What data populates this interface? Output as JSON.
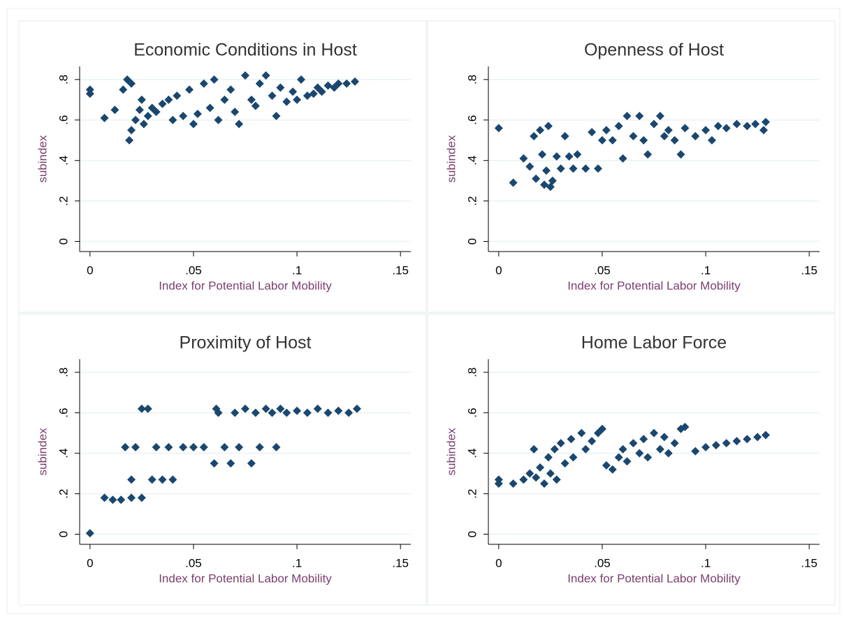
{
  "chart_data": [
    {
      "type": "scatter",
      "title": "Economic Conditions in Host",
      "x_label": "Index for Potential Labor Mobility",
      "y_label": "subindex",
      "color": "#1a476f",
      "grid": true,
      "xlim": [
        -0.005,
        0.155
      ],
      "ylim": [
        -0.05,
        0.865
      ],
      "xticks": [
        {
          "value": 0,
          "label": "0"
        },
        {
          "value": 0.05,
          "label": ".05"
        },
        {
          "value": 0.1,
          "label": ".1"
        },
        {
          "value": 0.15,
          "label": ".15"
        }
      ],
      "yticks": [
        {
          "value": 0,
          "label": "0"
        },
        {
          "value": 0.2,
          "label": ".2"
        },
        {
          "value": 0.4,
          "label": ".4"
        },
        {
          "value": 0.6,
          "label": ".6"
        },
        {
          "value": 0.8,
          "label": ".8"
        }
      ],
      "x": [
        0,
        0,
        0.007,
        0.012,
        0.016,
        0.018,
        0.019,
        0.02,
        0.02,
        0.022,
        0.024,
        0.025,
        0.026,
        0.028,
        0.03,
        0.032,
        0.035,
        0.038,
        0.04,
        0.042,
        0.045,
        0.048,
        0.05,
        0.052,
        0.055,
        0.058,
        0.06,
        0.062,
        0.065,
        0.068,
        0.07,
        0.072,
        0.075,
        0.078,
        0.08,
        0.082,
        0.085,
        0.088,
        0.09,
        0.092,
        0.095,
        0.098,
        0.1,
        0.102,
        0.105,
        0.108,
        0.11,
        0.112,
        0.115,
        0.118,
        0.12,
        0.124,
        0.128
      ],
      "values": [
        0.73,
        0.75,
        0.61,
        0.65,
        0.75,
        0.8,
        0.5,
        0.55,
        0.78,
        0.6,
        0.65,
        0.7,
        0.58,
        0.62,
        0.66,
        0.64,
        0.68,
        0.7,
        0.6,
        0.72,
        0.62,
        0.75,
        0.58,
        0.63,
        0.78,
        0.66,
        0.8,
        0.6,
        0.7,
        0.75,
        0.64,
        0.58,
        0.82,
        0.7,
        0.67,
        0.78,
        0.82,
        0.72,
        0.62,
        0.76,
        0.69,
        0.74,
        0.7,
        0.8,
        0.72,
        0.73,
        0.76,
        0.74,
        0.77,
        0.76,
        0.78,
        0.78,
        0.79
      ]
    },
    {
      "type": "scatter",
      "title": "Openness of Host",
      "x_label": "Index for Potential Labor Mobility",
      "y_label": "subindex",
      "color": "#1a476f",
      "grid": true,
      "xlim": [
        -0.005,
        0.155
      ],
      "ylim": [
        -0.05,
        0.865
      ],
      "xticks": [
        {
          "value": 0,
          "label": "0"
        },
        {
          "value": 0.05,
          "label": ".05"
        },
        {
          "value": 0.1,
          "label": ".1"
        },
        {
          "value": 0.15,
          "label": ".15"
        }
      ],
      "yticks": [
        {
          "value": 0,
          "label": "0"
        },
        {
          "value": 0.2,
          "label": ".2"
        },
        {
          "value": 0.4,
          "label": ".4"
        },
        {
          "value": 0.6,
          "label": ".6"
        },
        {
          "value": 0.8,
          "label": ".8"
        }
      ],
      "x": [
        0,
        0.007,
        0.012,
        0.015,
        0.017,
        0.018,
        0.02,
        0.021,
        0.022,
        0.023,
        0.024,
        0.025,
        0.026,
        0.028,
        0.03,
        0.032,
        0.034,
        0.036,
        0.038,
        0.042,
        0.045,
        0.048,
        0.05,
        0.052,
        0.055,
        0.058,
        0.06,
        0.062,
        0.065,
        0.068,
        0.07,
        0.072,
        0.075,
        0.078,
        0.08,
        0.082,
        0.085,
        0.088,
        0.09,
        0.095,
        0.1,
        0.103,
        0.106,
        0.11,
        0.115,
        0.12,
        0.124,
        0.128,
        0.129
      ],
      "values": [
        0.56,
        0.29,
        0.41,
        0.37,
        0.52,
        0.31,
        0.55,
        0.43,
        0.28,
        0.35,
        0.57,
        0.27,
        0.3,
        0.42,
        0.36,
        0.52,
        0.42,
        0.36,
        0.43,
        0.36,
        0.54,
        0.36,
        0.5,
        0.55,
        0.5,
        0.57,
        0.41,
        0.62,
        0.52,
        0.62,
        0.5,
        0.43,
        0.58,
        0.62,
        0.52,
        0.55,
        0.5,
        0.43,
        0.56,
        0.52,
        0.55,
        0.5,
        0.57,
        0.56,
        0.58,
        0.57,
        0.58,
        0.55,
        0.59
      ]
    },
    {
      "type": "scatter",
      "title": "Proximity of Host",
      "x_label": "Index for Potential Labor Mobility",
      "y_label": "subindex",
      "color": "#1a476f",
      "grid": true,
      "xlim": [
        -0.005,
        0.155
      ],
      "ylim": [
        -0.05,
        0.865
      ],
      "xticks": [
        {
          "value": 0,
          "label": "0"
        },
        {
          "value": 0.05,
          "label": ".05"
        },
        {
          "value": 0.1,
          "label": ".1"
        },
        {
          "value": 0.15,
          "label": ".15"
        }
      ],
      "yticks": [
        {
          "value": 0,
          "label": "0"
        },
        {
          "value": 0.2,
          "label": ".2"
        },
        {
          "value": 0.4,
          "label": ".4"
        },
        {
          "value": 0.6,
          "label": ".6"
        },
        {
          "value": 0.8,
          "label": ".8"
        }
      ],
      "x": [
        0,
        0.007,
        0.011,
        0.015,
        0.02,
        0.025,
        0.017,
        0.02,
        0.022,
        0.025,
        0.028,
        0.03,
        0.032,
        0.035,
        0.04,
        0.038,
        0.045,
        0.05,
        0.055,
        0.06,
        0.061,
        0.062,
        0.065,
        0.068,
        0.07,
        0.072,
        0.075,
        0.078,
        0.08,
        0.082,
        0.085,
        0.088,
        0.09,
        0.092,
        0.095,
        0.1,
        0.105,
        0.11,
        0.115,
        0.12,
        0.125,
        0.129
      ],
      "values": [
        0.005,
        0.18,
        0.17,
        0.17,
        0.18,
        0.18,
        0.43,
        0.27,
        0.43,
        0.62,
        0.62,
        0.27,
        0.43,
        0.27,
        0.27,
        0.43,
        0.43,
        0.43,
        0.43,
        0.35,
        0.62,
        0.6,
        0.43,
        0.35,
        0.6,
        0.43,
        0.62,
        0.35,
        0.6,
        0.43,
        0.62,
        0.6,
        0.43,
        0.62,
        0.6,
        0.61,
        0.6,
        0.62,
        0.6,
        0.61,
        0.6,
        0.62
      ]
    },
    {
      "type": "scatter",
      "title": "Home Labor Force",
      "x_label": "Index for Potential Labor Mobility",
      "y_label": "subindex",
      "color": "#1a476f",
      "grid": true,
      "xlim": [
        -0.005,
        0.155
      ],
      "ylim": [
        -0.05,
        0.865
      ],
      "xticks": [
        {
          "value": 0,
          "label": "0"
        },
        {
          "value": 0.05,
          "label": ".05"
        },
        {
          "value": 0.1,
          "label": ".1"
        },
        {
          "value": 0.15,
          "label": ".15"
        }
      ],
      "yticks": [
        {
          "value": 0,
          "label": "0"
        },
        {
          "value": 0.2,
          "label": ".2"
        },
        {
          "value": 0.4,
          "label": ".4"
        },
        {
          "value": 0.6,
          "label": ".6"
        },
        {
          "value": 0.8,
          "label": ".8"
        }
      ],
      "x": [
        0,
        0,
        0.007,
        0.012,
        0.015,
        0.017,
        0.018,
        0.02,
        0.022,
        0.024,
        0.025,
        0.027,
        0.028,
        0.03,
        0.032,
        0.035,
        0.036,
        0.04,
        0.042,
        0.045,
        0.048,
        0.05,
        0.052,
        0.055,
        0.058,
        0.06,
        0.062,
        0.065,
        0.068,
        0.07,
        0.072,
        0.075,
        0.078,
        0.08,
        0.082,
        0.085,
        0.088,
        0.09,
        0.095,
        0.1,
        0.105,
        0.11,
        0.115,
        0.12,
        0.125,
        0.129
      ],
      "values": [
        0.25,
        0.27,
        0.25,
        0.27,
        0.3,
        0.42,
        0.28,
        0.33,
        0.25,
        0.38,
        0.3,
        0.42,
        0.27,
        0.45,
        0.35,
        0.47,
        0.38,
        0.5,
        0.42,
        0.46,
        0.5,
        0.52,
        0.34,
        0.32,
        0.38,
        0.42,
        0.36,
        0.45,
        0.4,
        0.47,
        0.38,
        0.5,
        0.42,
        0.48,
        0.4,
        0.45,
        0.52,
        0.53,
        0.41,
        0.43,
        0.44,
        0.45,
        0.46,
        0.47,
        0.48,
        0.49
      ]
    }
  ]
}
